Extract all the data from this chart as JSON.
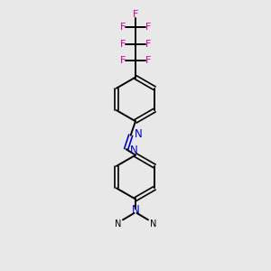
{
  "bg_color": "#e8e8e8",
  "bond_color": "#000000",
  "nitrogen_color": "#0000cc",
  "fluorine_color": "#cc0099",
  "fig_width": 3.0,
  "fig_height": 3.0,
  "dpi": 100,
  "xlim": [
    0,
    10
  ],
  "ylim": [
    0,
    10
  ]
}
